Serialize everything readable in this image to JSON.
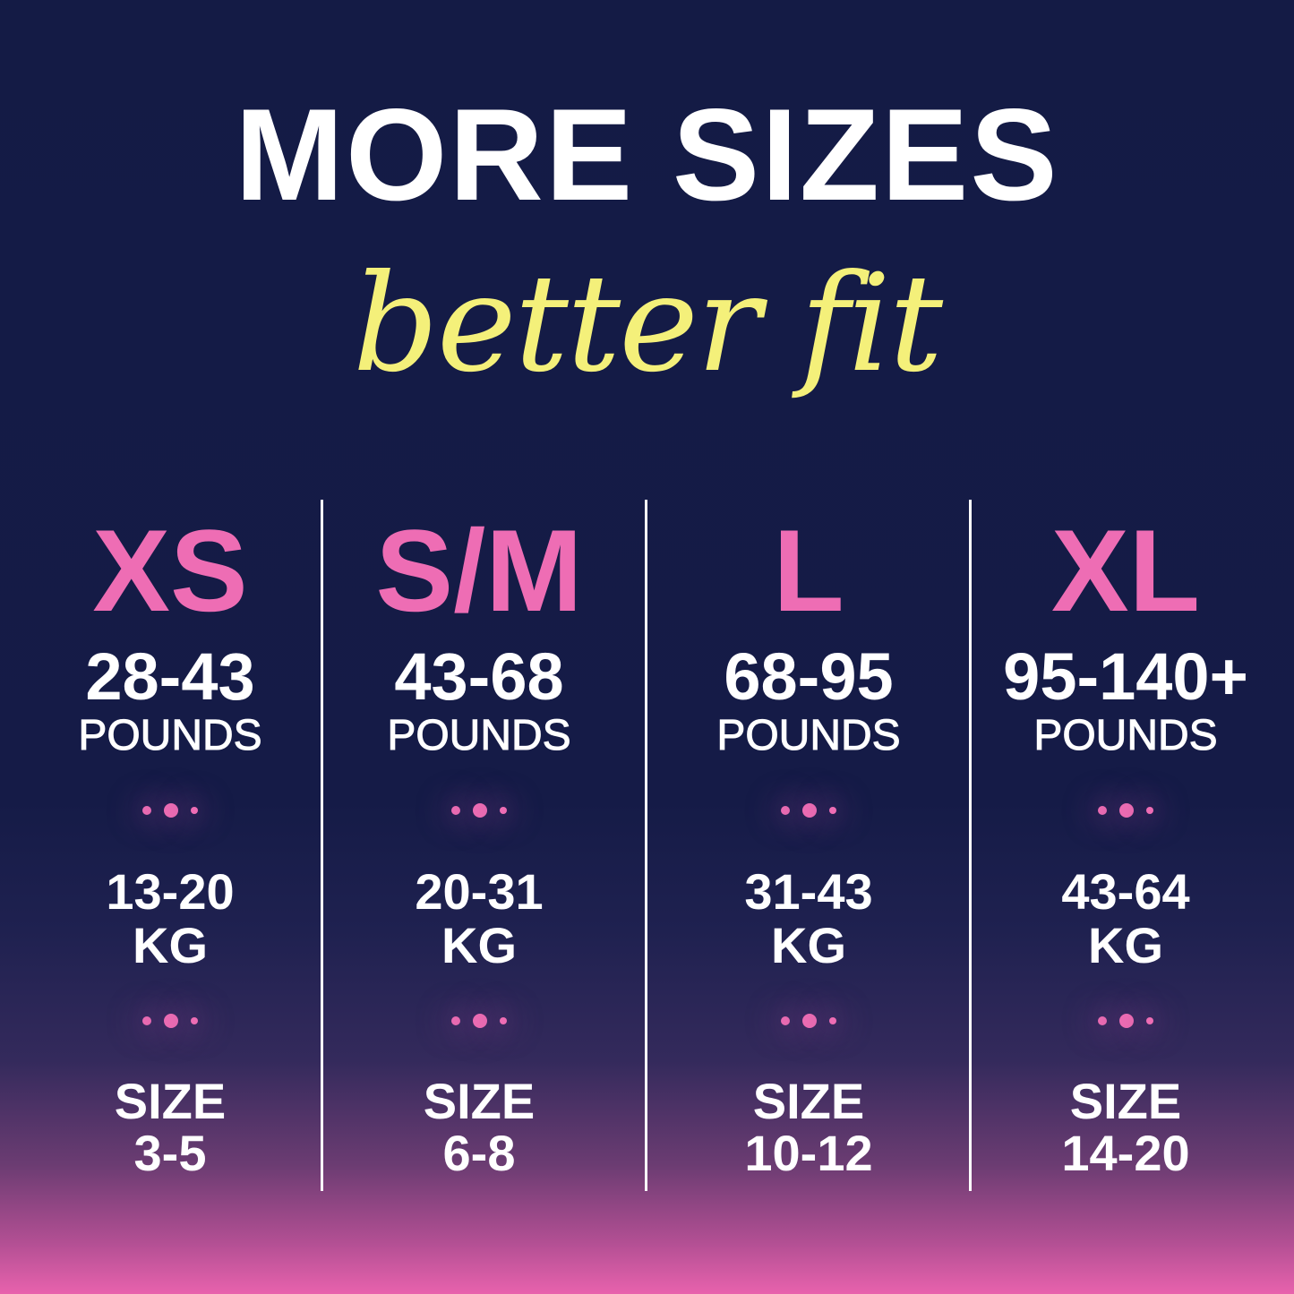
{
  "heading": {
    "title": "MORE SIZES",
    "subtitle": "better fit"
  },
  "colors": {
    "background": "#141b45",
    "accent_pink": "#ee6db4",
    "script_yellow": "#f4f07a",
    "text": "#ffffff"
  },
  "columns": [
    {
      "size": "XS",
      "pounds": "28-43",
      "pounds_unit": "POUNDS",
      "kg": "13-20",
      "kg_unit": "KG",
      "size_label": "SIZE",
      "size_range": "3-5"
    },
    {
      "size": "S/M",
      "pounds": "43-68",
      "pounds_unit": "POUNDS",
      "kg": "20-31",
      "kg_unit": "KG",
      "size_label": "SIZE",
      "size_range": "6-8"
    },
    {
      "size": "L",
      "pounds": "68-95",
      "pounds_unit": "POUNDS",
      "kg": "31-43",
      "kg_unit": "KG",
      "size_label": "SIZE",
      "size_range": "10-12"
    },
    {
      "size": "XL",
      "pounds": "95-140+",
      "pounds_unit": "POUNDS",
      "kg": "43-64",
      "kg_unit": "KG",
      "size_label": "SIZE",
      "size_range": "14-20"
    }
  ]
}
